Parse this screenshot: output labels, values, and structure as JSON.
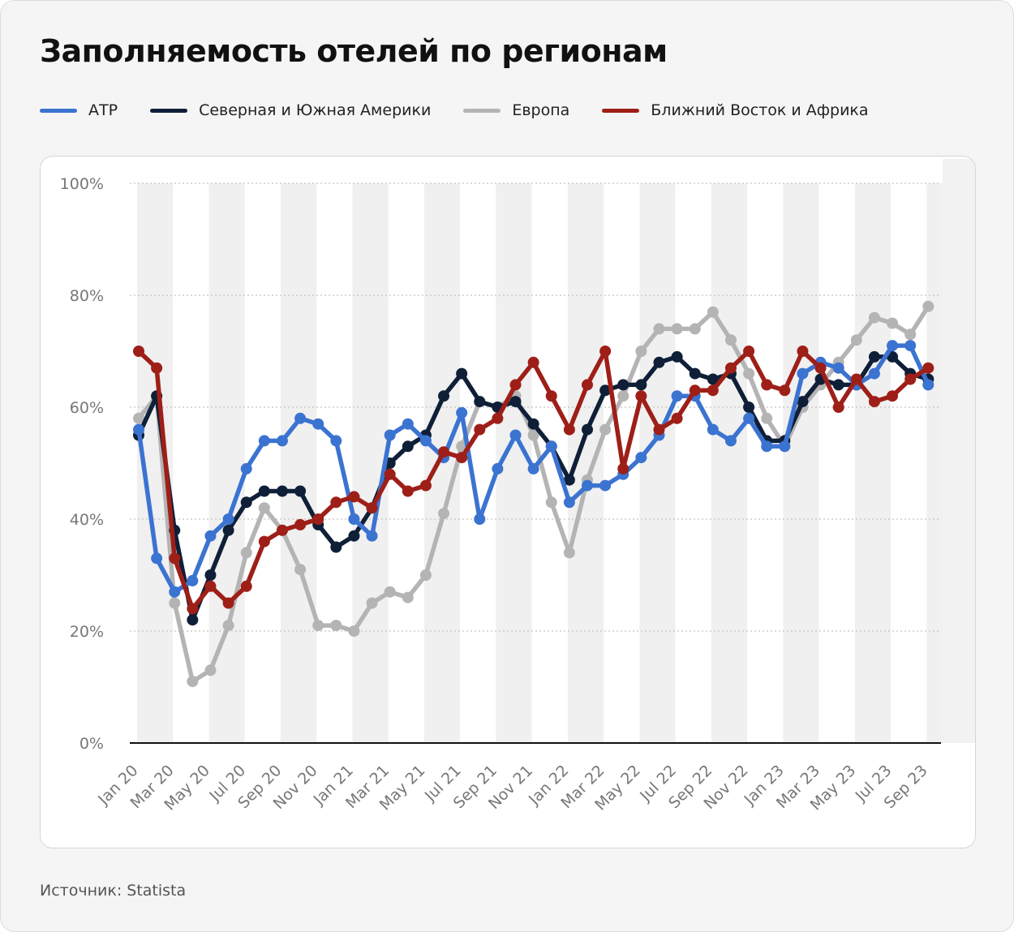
{
  "title": "Заполняемость отелей по регионам",
  "source": "Источник: Statista",
  "chart_data": {
    "type": "line",
    "title": "Заполняемость отелей по регионам",
    "xlabel": "",
    "ylabel": "",
    "ylim": [
      0,
      100
    ],
    "y_ticks": [
      "0%",
      "20%",
      "40%",
      "60%",
      "80%",
      "100%"
    ],
    "y_tick_values": [
      0,
      20,
      40,
      60,
      80,
      100
    ],
    "grid": true,
    "legend_position": "top-left",
    "x": [
      "Jan 20",
      "Feb 20",
      "Mar 20",
      "Apr 20",
      "May 20",
      "Jun 20",
      "Jul 20",
      "Aug 20",
      "Sep 20",
      "Oct 20",
      "Nov 20",
      "Dec 20",
      "Jan 21",
      "Feb 21",
      "Mar 21",
      "Apr 21",
      "May 21",
      "Jun 21",
      "Jul 21",
      "Aug 21",
      "Sep 21",
      "Oct 21",
      "Nov 21",
      "Dec 21",
      "Jan 22",
      "Feb 22",
      "Mar 22",
      "Apr 22",
      "May 22",
      "Jun 22",
      "Jul 22",
      "Aug 22",
      "Sep 22",
      "Oct 22",
      "Nov 22",
      "Dec 22",
      "Jan 23",
      "Feb 23",
      "Mar 23",
      "Apr 23",
      "May 23",
      "Jun 23",
      "Jul 23",
      "Aug 23",
      "Sep 23"
    ],
    "x_tick_labels": [
      "Jan 20",
      "Mar 20",
      "May 20",
      "Jul 20",
      "Sep 20",
      "Nov 20",
      "Jan 21",
      "Mar 21",
      "May 21",
      "Jul 21",
      "Sep 21",
      "Nov 21",
      "Jan 22",
      "Mar 22",
      "May 22",
      "Jul 22",
      "Sep 22",
      "Nov 22",
      "Jan 23",
      "Mar 23",
      "May 23",
      "Jul 23",
      "Sep 23"
    ],
    "series": [
      {
        "name": "Европа",
        "color": "#b4b4b4",
        "values": [
          58,
          62,
          25,
          11,
          13,
          21,
          34,
          42,
          38,
          31,
          21,
          21,
          20,
          25,
          27,
          26,
          30,
          41,
          53,
          61,
          60,
          62,
          55,
          43,
          34,
          47,
          56,
          62,
          70,
          74,
          74,
          74,
          77,
          72,
          66,
          58,
          53,
          60,
          64,
          68,
          72,
          76,
          75,
          73,
          78
        ]
      },
      {
        "name": "Северная и Южная Америки",
        "color": "#0f1f38",
        "values": [
          55,
          62,
          38,
          22,
          30,
          38,
          43,
          45,
          45,
          45,
          39,
          35,
          37,
          42,
          50,
          53,
          55,
          62,
          66,
          61,
          60,
          61,
          57,
          53,
          47,
          56,
          63,
          64,
          64,
          68,
          69,
          66,
          65,
          66,
          60,
          54,
          54,
          61,
          65,
          64,
          64,
          69,
          69,
          66,
          65
        ]
      },
      {
        "name": "АТР",
        "color": "#3b73d1",
        "values": [
          56,
          33,
          27,
          29,
          37,
          40,
          49,
          54,
          54,
          58,
          57,
          54,
          40,
          37,
          55,
          57,
          54,
          51,
          59,
          40,
          49,
          55,
          49,
          53,
          43,
          46,
          46,
          48,
          51,
          55,
          62,
          62,
          56,
          54,
          58,
          53,
          53,
          66,
          68,
          67,
          64,
          66,
          71,
          71,
          64
        ]
      },
      {
        "name": "Ближний Восток и Африка",
        "color": "#9e1f18",
        "values": [
          70,
          67,
          33,
          24,
          28,
          25,
          28,
          36,
          38,
          39,
          40,
          43,
          44,
          42,
          48,
          45,
          46,
          52,
          51,
          56,
          58,
          64,
          68,
          62,
          56,
          64,
          70,
          49,
          62,
          56,
          58,
          63,
          63,
          67,
          70,
          64,
          63,
          70,
          67,
          60,
          65,
          61,
          62,
          65,
          67
        ]
      }
    ]
  }
}
